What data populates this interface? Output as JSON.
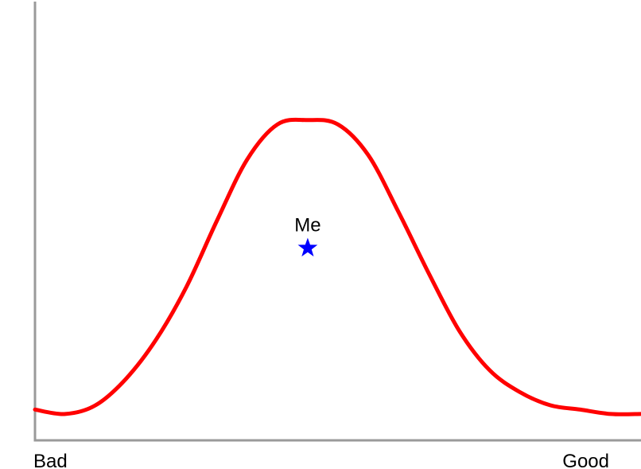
{
  "chart_data": {
    "type": "line",
    "title": "",
    "xlabel": "",
    "ylabel": "",
    "x_tick_labels": {
      "left": "Bad",
      "right": "Good"
    },
    "grid": false,
    "legend": "none",
    "xlim": [
      0,
      100
    ],
    "ylim": [
      0,
      100
    ],
    "series": [
      {
        "color": "#ff0000",
        "points": [
          [
            0,
            7
          ],
          [
            5,
            6
          ],
          [
            10,
            8
          ],
          [
            15,
            14
          ],
          [
            20,
            23
          ],
          [
            25,
            35
          ],
          [
            30,
            50
          ],
          [
            35,
            64
          ],
          [
            40,
            72
          ],
          [
            45,
            73
          ],
          [
            50,
            72
          ],
          [
            55,
            65
          ],
          [
            60,
            52
          ],
          [
            65,
            38
          ],
          [
            70,
            25
          ],
          [
            75,
            16
          ],
          [
            80,
            11
          ],
          [
            85,
            8
          ],
          [
            90,
            7
          ],
          [
            95,
            6
          ],
          [
            100,
            6
          ]
        ]
      }
    ],
    "annotations": [
      {
        "label": "Me",
        "x": 45,
        "y": 44,
        "marker": "star",
        "color": "#0000ff"
      }
    ]
  }
}
